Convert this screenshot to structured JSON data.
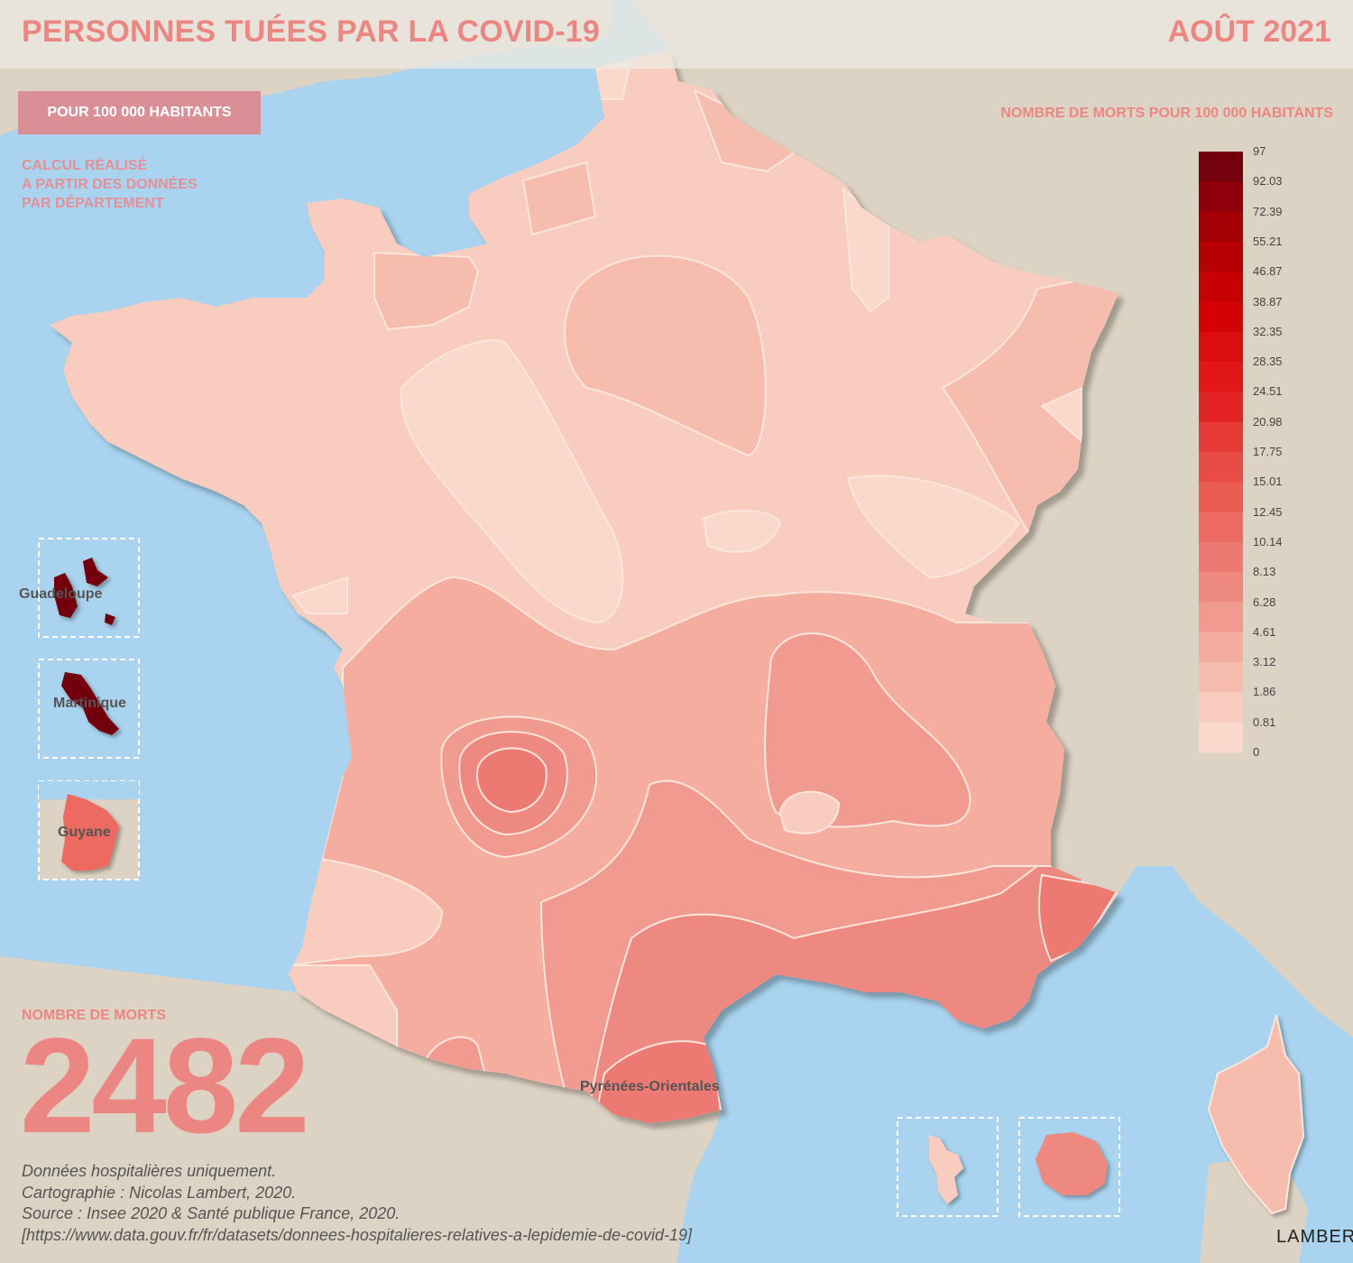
{
  "header": {
    "title": "PERSONNES TUÉES PAR LA COVID-19",
    "date": "AOÛT 2021"
  },
  "badge": "POUR 100 000 HABITANTS",
  "calc_note": [
    "CALCUL RÉALISÉ",
    "A PARTIR DES DONNÉES",
    "PAR DÉPARTEMENT"
  ],
  "legend": {
    "title": "NOMBRE DE MORTS POUR 100 000 HABITANTS",
    "breaks": [
      "97",
      "92.03",
      "72.39",
      "55.21",
      "46.87",
      "38.87",
      "32.35",
      "28.35",
      "24.51",
      "20.98",
      "17.75",
      "15.01",
      "12.45",
      "10.14",
      "8.13",
      "6.28",
      "4.61",
      "3.12",
      "1.86",
      "0.81",
      "0"
    ],
    "colors": [
      "#75000e",
      "#8e0009",
      "#a20004",
      "#b70003",
      "#c70004",
      "#d30304",
      "#dc0d0d",
      "#e21717",
      "#e42424",
      "#e53a35",
      "#e74d45",
      "#e85c52",
      "#eb6b62",
      "#ec7a72",
      "#ee8981",
      "#f09a90",
      "#f4ad9f",
      "#f6bdaf",
      "#f8ccbe",
      "#fad9cc"
    ]
  },
  "total": {
    "label": "NOMBRE DE MORTS",
    "value": "2482"
  },
  "places": {
    "guadeloupe": "Guadeloupe",
    "martinique": "Martinique",
    "guyane": "Guyane",
    "pyrenees": "Pyrénées-Orientales"
  },
  "source_lines": [
    "Données hospitalières uniquement.",
    "Cartographie : Nicolas Lambert, 2020.",
    "Source : Insee 2020 & Santé publique France, 2020.",
    "[https://www.data.gouv.fr/fr/datasets/donnees-hospitalieres-relatives-a-lepidemie-de-covid-19]"
  ],
  "signature": "LAMBERT",
  "colors": {
    "sea": "#a9d3ee",
    "land": "#ddd3c4",
    "accent": "#ec8682"
  }
}
